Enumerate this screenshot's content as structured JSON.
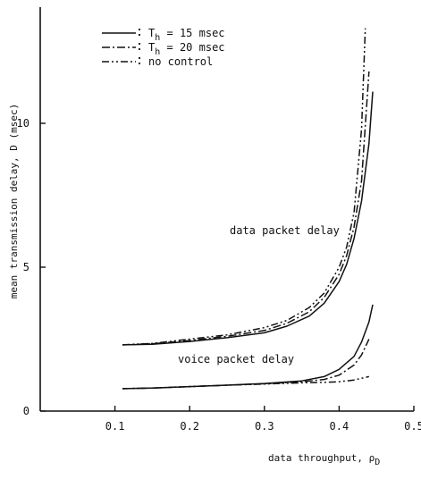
{
  "chart_data": {
    "type": "line",
    "title": "",
    "xlabel": "data throughput, ρ",
    "xlabel_sub": "D",
    "ylabel": "mean transmission delay, D (msec)",
    "xlim": [
      0,
      0.5
    ],
    "ylim": [
      0,
      14
    ],
    "x_ticks": [
      "0.1",
      "0.2",
      "0.3",
      "0.4",
      "0.5"
    ],
    "y_ticks": [
      "0",
      "5",
      "10"
    ],
    "grid": false,
    "legend_position": "top-left",
    "legend": [
      {
        "style": "solid",
        "label_prefix": "T",
        "label_sub": "h",
        "label_rest": " = 15 msec"
      },
      {
        "style": "dash-dot",
        "label_prefix": "T",
        "label_sub": "h",
        "label_rest": " = 20 msec"
      },
      {
        "style": "dash-dot-dot",
        "label_prefix": "",
        "label_sub": "",
        "label_rest": "no control"
      }
    ],
    "annotations": {
      "data": "data packet delay",
      "voice": "voice packet delay"
    },
    "series": [
      {
        "group": "data",
        "style": "solid",
        "x": [
          0.11,
          0.15,
          0.2,
          0.25,
          0.3,
          0.33,
          0.36,
          0.38,
          0.4,
          0.41,
          0.42,
          0.43,
          0.44,
          0.445
        ],
        "y": [
          2.3,
          2.32,
          2.42,
          2.55,
          2.72,
          2.95,
          3.3,
          3.75,
          4.5,
          5.1,
          6.0,
          7.3,
          9.3,
          11.1
        ]
      },
      {
        "group": "data",
        "style": "dash-dot",
        "x": [
          0.11,
          0.15,
          0.2,
          0.25,
          0.3,
          0.33,
          0.36,
          0.38,
          0.4,
          0.41,
          0.42,
          0.43,
          0.44
        ],
        "y": [
          2.3,
          2.34,
          2.45,
          2.6,
          2.8,
          3.05,
          3.45,
          3.95,
          4.75,
          5.4,
          6.4,
          8.0,
          11.8
        ]
      },
      {
        "group": "data",
        "style": "dash-dot-dot",
        "x": [
          0.11,
          0.15,
          0.2,
          0.25,
          0.3,
          0.33,
          0.36,
          0.38,
          0.4,
          0.41,
          0.42,
          0.43,
          0.435
        ],
        "y": [
          2.3,
          2.35,
          2.5,
          2.65,
          2.9,
          3.15,
          3.6,
          4.1,
          5.0,
          5.7,
          6.9,
          9.8,
          13.3
        ]
      },
      {
        "group": "voice",
        "style": "solid",
        "x": [
          0.11,
          0.15,
          0.2,
          0.25,
          0.3,
          0.35,
          0.38,
          0.4,
          0.42,
          0.43,
          0.44,
          0.445
        ],
        "y": [
          0.78,
          0.8,
          0.85,
          0.9,
          0.96,
          1.05,
          1.2,
          1.45,
          1.9,
          2.4,
          3.1,
          3.7
        ]
      },
      {
        "group": "voice",
        "style": "dash-dot",
        "x": [
          0.11,
          0.15,
          0.2,
          0.25,
          0.3,
          0.35,
          0.38,
          0.4,
          0.42,
          0.43,
          0.44
        ],
        "y": [
          0.78,
          0.8,
          0.85,
          0.9,
          0.95,
          1.02,
          1.1,
          1.25,
          1.6,
          1.95,
          2.5
        ]
      },
      {
        "group": "voice",
        "style": "dash-dot-dot",
        "x": [
          0.11,
          0.15,
          0.2,
          0.25,
          0.3,
          0.35,
          0.38,
          0.4,
          0.42,
          0.44
        ],
        "y": [
          0.78,
          0.8,
          0.85,
          0.9,
          0.94,
          0.98,
          1.0,
          1.02,
          1.08,
          1.2
        ]
      }
    ]
  }
}
